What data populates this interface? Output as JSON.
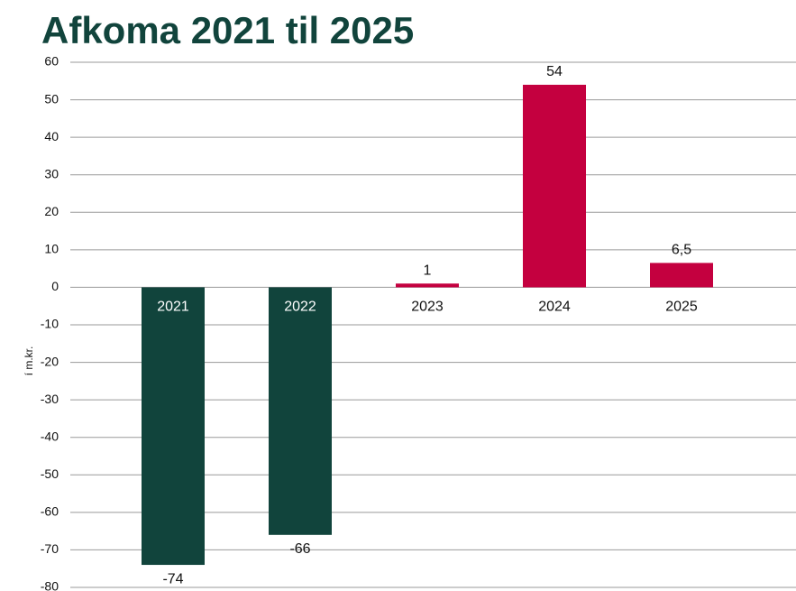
{
  "chart_data": {
    "type": "bar",
    "title": "Afkoma 2021 til 2025",
    "y_label": "í m.kr.",
    "categories": [
      "2021",
      "2022",
      "2023",
      "2024",
      "2025"
    ],
    "values": [
      -74,
      -66,
      1,
      54,
      6.5
    ],
    "value_labels": [
      "-74",
      "-66",
      "1",
      "54",
      "6,5"
    ],
    "colors": [
      "#11443c",
      "#11443c",
      "#c4003f",
      "#c4003f",
      "#c4003f"
    ],
    "ylim": [
      -80,
      60
    ],
    "yticks": [
      60,
      50,
      40,
      30,
      20,
      10,
      0,
      -10,
      -20,
      -30,
      -40,
      -50,
      -60,
      -70,
      -80
    ],
    "grid": true
  }
}
